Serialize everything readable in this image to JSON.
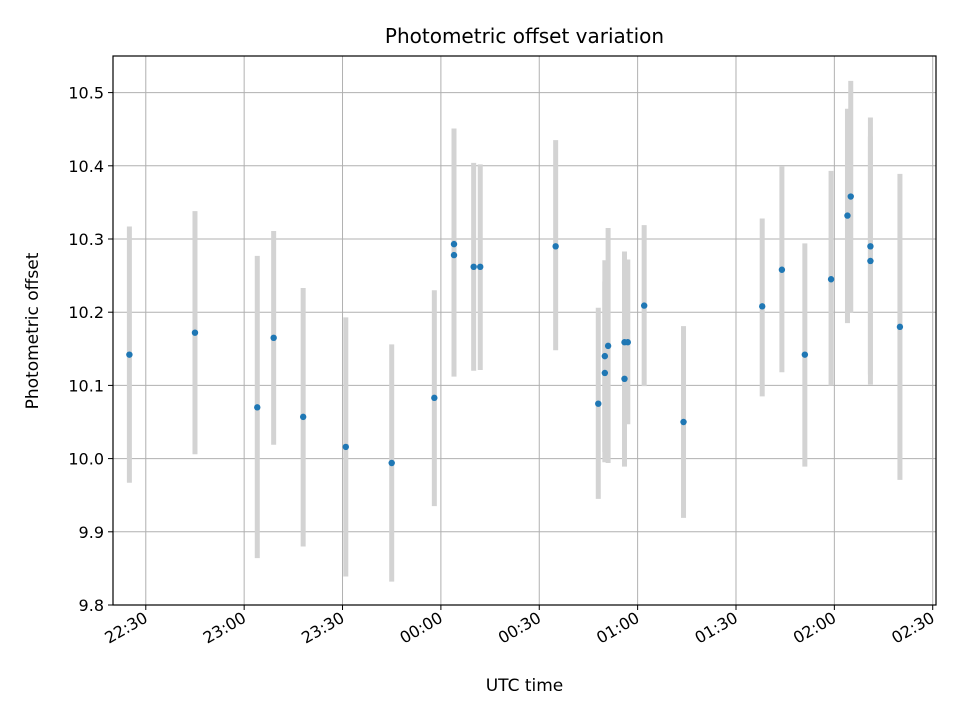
{
  "chart_data": {
    "type": "scatter",
    "title": "Photometric offset variation",
    "xlabel": "UTC time",
    "ylabel": "Photometric offset",
    "x_axis_type": "time",
    "xlim": [
      "22:20",
      "02:31"
    ],
    "ylim": [
      9.8,
      10.55
    ],
    "x_ticks": [
      "22:30",
      "23:00",
      "23:30",
      "00:00",
      "00:30",
      "01:00",
      "01:30",
      "02:00",
      "02:30"
    ],
    "y_ticks": [
      "9.8",
      "9.9",
      "10.0",
      "10.1",
      "10.2",
      "10.3",
      "10.4",
      "10.5"
    ],
    "grid": true,
    "point_color": "#1f77b4",
    "errorbar_color": "#d3d3d3",
    "series": [
      {
        "points": [
          {
            "t": "22:25",
            "y": 10.142,
            "lo": 9.967,
            "hi": 10.317
          },
          {
            "t": "22:45",
            "y": 10.172,
            "lo": 10.006,
            "hi": 10.338
          },
          {
            "t": "23:04",
            "y": 10.07,
            "lo": 9.864,
            "hi": 10.277
          },
          {
            "t": "23:09",
            "y": 10.165,
            "lo": 10.019,
            "hi": 10.311
          },
          {
            "t": "23:18",
            "y": 10.057,
            "lo": 9.88,
            "hi": 10.233
          },
          {
            "t": "23:31",
            "y": 10.016,
            "lo": 9.839,
            "hi": 10.193
          },
          {
            "t": "23:45",
            "y": 9.994,
            "lo": 9.832,
            "hi": 10.156
          },
          {
            "t": "23:58",
            "y": 10.083,
            "lo": 9.935,
            "hi": 10.23
          },
          {
            "t": "00:04",
            "y": 10.278,
            "lo": 10.112,
            "hi": 10.443
          },
          {
            "t": "00:04",
            "y": 10.293,
            "lo": 10.136,
            "hi": 10.451
          },
          {
            "t": "00:10",
            "y": 10.262,
            "lo": 10.12,
            "hi": 10.404
          },
          {
            "t": "00:12",
            "y": 10.262,
            "lo": 10.121,
            "hi": 10.402
          },
          {
            "t": "00:35",
            "y": 10.29,
            "lo": 10.148,
            "hi": 10.435
          },
          {
            "t": "00:48",
            "y": 10.075,
            "lo": 9.945,
            "hi": 10.206
          },
          {
            "t": "00:50",
            "y": 10.117,
            "lo": 9.995,
            "hi": 10.242
          },
          {
            "t": "00:50",
            "y": 10.14,
            "lo": 10.009,
            "hi": 10.271
          },
          {
            "t": "00:51",
            "y": 10.154,
            "lo": 9.994,
            "hi": 10.315
          },
          {
            "t": "00:56",
            "y": 10.109,
            "lo": 9.989,
            "hi": 10.228
          },
          {
            "t": "00:56",
            "y": 10.159,
            "lo": 10.036,
            "hi": 10.283
          },
          {
            "t": "00:57",
            "y": 10.159,
            "lo": 10.047,
            "hi": 10.272
          },
          {
            "t": "01:02",
            "y": 10.209,
            "lo": 10.099,
            "hi": 10.319
          },
          {
            "t": "01:14",
            "y": 10.05,
            "lo": 9.919,
            "hi": 10.181
          },
          {
            "t": "01:38",
            "y": 10.208,
            "lo": 10.085,
            "hi": 10.328
          },
          {
            "t": "01:44",
            "y": 10.258,
            "lo": 10.118,
            "hi": 10.399
          },
          {
            "t": "01:51",
            "y": 10.142,
            "lo": 9.989,
            "hi": 10.294
          },
          {
            "t": "01:59",
            "y": 10.245,
            "lo": 10.1,
            "hi": 10.393
          },
          {
            "t": "02:04",
            "y": 10.332,
            "lo": 10.185,
            "hi": 10.478
          },
          {
            "t": "02:05",
            "y": 10.358,
            "lo": 10.199,
            "hi": 10.516
          },
          {
            "t": "02:11",
            "y": 10.27,
            "lo": 10.101,
            "hi": 10.44
          },
          {
            "t": "02:11",
            "y": 10.29,
            "lo": 10.115,
            "hi": 10.466
          },
          {
            "t": "02:20",
            "y": 10.18,
            "lo": 9.971,
            "hi": 10.389
          }
        ]
      }
    ]
  }
}
